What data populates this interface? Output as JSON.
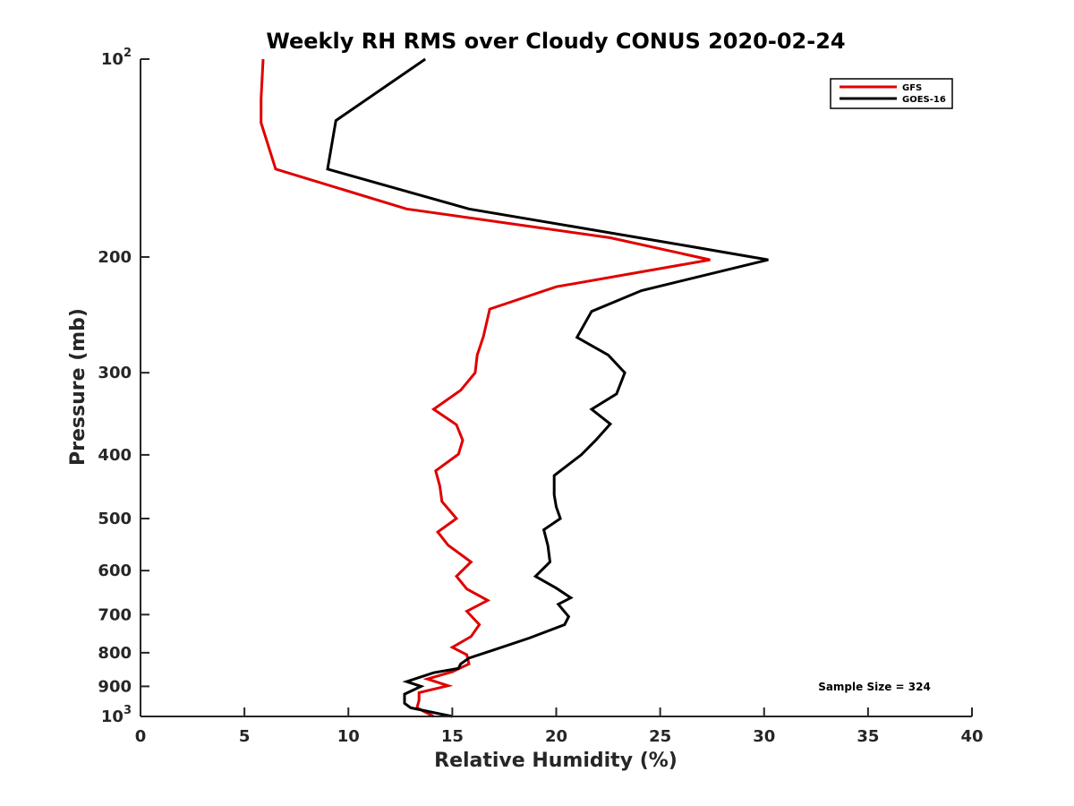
{
  "chart_data": {
    "type": "line",
    "title": "Weekly RH RMS over Cloudy CONUS 2020-02-24",
    "xlabel": "Relative Humidity (%)",
    "ylabel": "Pressure (mb)",
    "xlim": [
      0,
      40
    ],
    "ylim": [
      100,
      1000
    ],
    "y_scale": "log",
    "y_reversed": true,
    "grid": false,
    "legend_position": "top-right",
    "x_ticks": [
      0,
      5,
      10,
      15,
      20,
      25,
      30,
      35,
      40
    ],
    "y_ticks": [
      {
        "value": 100,
        "base": "10",
        "exp": "2",
        "label": ""
      },
      {
        "value": 200,
        "label": "200"
      },
      {
        "value": 300,
        "label": "300"
      },
      {
        "value": 400,
        "label": "400"
      },
      {
        "value": 500,
        "label": "500"
      },
      {
        "value": 600,
        "label": "600"
      },
      {
        "value": 700,
        "label": "700"
      },
      {
        "value": 800,
        "label": "800"
      },
      {
        "value": 900,
        "label": "900"
      },
      {
        "value": 1000,
        "base": "10",
        "exp": "3",
        "label": ""
      }
    ],
    "annotation": "Sample Size = 324",
    "series": [
      {
        "name": "GFS",
        "color": "#e00000",
        "points": [
          [
            5.9,
            100
          ],
          [
            5.8,
            115
          ],
          [
            5.8,
            125
          ],
          [
            6.5,
            147
          ],
          [
            12.8,
            169
          ],
          [
            22.6,
            187
          ],
          [
            27.4,
            202
          ],
          [
            20.0,
            222
          ],
          [
            16.8,
            240
          ],
          [
            16.5,
            264
          ],
          [
            16.2,
            282
          ],
          [
            16.1,
            300
          ],
          [
            15.4,
            319
          ],
          [
            14.1,
            341
          ],
          [
            15.2,
            360
          ],
          [
            15.5,
            380
          ],
          [
            15.3,
            399
          ],
          [
            14.2,
            423
          ],
          [
            14.4,
            446
          ],
          [
            14.5,
            471
          ],
          [
            15.2,
            500
          ],
          [
            14.3,
            524
          ],
          [
            14.8,
            549
          ],
          [
            15.9,
            582
          ],
          [
            15.2,
            612
          ],
          [
            15.7,
            640
          ],
          [
            16.7,
            666
          ],
          [
            15.7,
            692
          ],
          [
            16.3,
            725
          ],
          [
            15.9,
            756
          ],
          [
            15.0,
            785
          ],
          [
            15.7,
            806
          ],
          [
            15.8,
            832
          ],
          [
            15.0,
            855
          ],
          [
            13.8,
            877
          ],
          [
            14.8,
            898
          ],
          [
            13.4,
            920
          ],
          [
            13.4,
            945
          ],
          [
            13.3,
            970
          ],
          [
            14.1,
            1000
          ]
        ]
      },
      {
        "name": "GOES-16",
        "color": "#000000",
        "points": [
          [
            13.7,
            100
          ],
          [
            9.4,
            124
          ],
          [
            9.0,
            147
          ],
          [
            15.8,
            169
          ],
          [
            25.3,
            190
          ],
          [
            30.2,
            202
          ],
          [
            24.1,
            225
          ],
          [
            21.7,
            242
          ],
          [
            21.0,
            265
          ],
          [
            22.5,
            282
          ],
          [
            23.3,
            300
          ],
          [
            22.9,
            323
          ],
          [
            21.7,
            341
          ],
          [
            22.6,
            359
          ],
          [
            21.9,
            380
          ],
          [
            21.2,
            400
          ],
          [
            19.9,
            430
          ],
          [
            19.9,
            460
          ],
          [
            20.0,
            480
          ],
          [
            20.2,
            500
          ],
          [
            19.4,
            520
          ],
          [
            19.6,
            550
          ],
          [
            19.7,
            582
          ],
          [
            19.0,
            612
          ],
          [
            20.0,
            638
          ],
          [
            20.7,
            660
          ],
          [
            20.1,
            675
          ],
          [
            20.6,
            705
          ],
          [
            20.4,
            725
          ],
          [
            18.7,
            760
          ],
          [
            17.1,
            790
          ],
          [
            15.8,
            815
          ],
          [
            15.4,
            832
          ],
          [
            15.3,
            845
          ],
          [
            14.1,
            858
          ],
          [
            12.8,
            885
          ],
          [
            13.5,
            900
          ],
          [
            12.7,
            925
          ],
          [
            12.7,
            955
          ],
          [
            13.0,
            970
          ],
          [
            15.0,
            1000
          ]
        ]
      }
    ]
  }
}
